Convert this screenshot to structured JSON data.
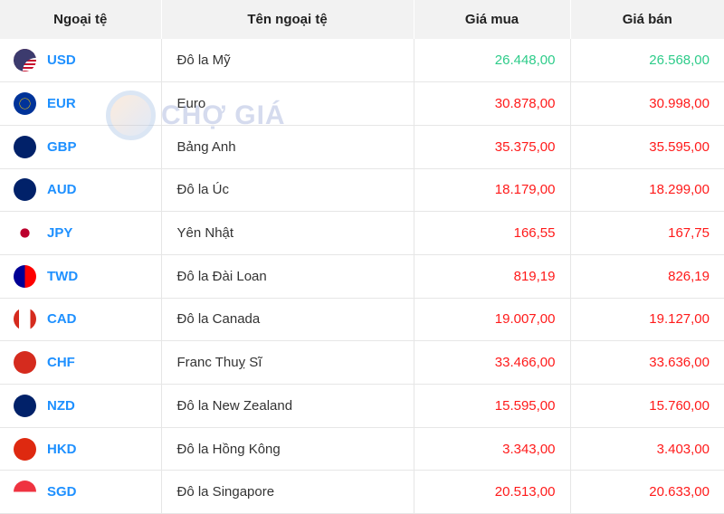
{
  "header": {
    "code": "Ngoại tệ",
    "name": "Tên ngoại tệ",
    "buy": "Giá mua",
    "sell": "Giá bán"
  },
  "watermark": "CHỢ GIÁ",
  "colors": {
    "code": "#1e90ff",
    "up": "#2ecc8a",
    "down": "#ff1a1a"
  },
  "rows": [
    {
      "code": "USD",
      "name": "Đô la Mỹ",
      "buy": "26.448,00",
      "sell": "26.568,00",
      "trend": "up",
      "flag": "us-flag-icon"
    },
    {
      "code": "EUR",
      "name": "Euro",
      "buy": "30.878,00",
      "sell": "30.998,00",
      "trend": "down",
      "flag": "eu-flag-icon"
    },
    {
      "code": "GBP",
      "name": "Bảng Anh",
      "buy": "35.375,00",
      "sell": "35.595,00",
      "trend": "down",
      "flag": "uk-flag-icon"
    },
    {
      "code": "AUD",
      "name": "Đô la Úc",
      "buy": "18.179,00",
      "sell": "18.299,00",
      "trend": "down",
      "flag": "au-flag-icon"
    },
    {
      "code": "JPY",
      "name": "Yên Nhật",
      "buy": "166,55",
      "sell": "167,75",
      "trend": "down",
      "flag": "jp-flag-icon"
    },
    {
      "code": "TWD",
      "name": "Đô la Đài Loan",
      "buy": "819,19",
      "sell": "826,19",
      "trend": "down",
      "flag": "tw-flag-icon"
    },
    {
      "code": "CAD",
      "name": "Đô la Canada",
      "buy": "19.007,00",
      "sell": "19.127,00",
      "trend": "down",
      "flag": "ca-flag-icon"
    },
    {
      "code": "CHF",
      "name": "Franc Thuỵ Sĩ",
      "buy": "33.466,00",
      "sell": "33.636,00",
      "trend": "down",
      "flag": "ch-flag-icon"
    },
    {
      "code": "NZD",
      "name": "Đô la New Zealand",
      "buy": "15.595,00",
      "sell": "15.760,00",
      "trend": "down",
      "flag": "nz-flag-icon"
    },
    {
      "code": "HKD",
      "name": "Đô la Hồng Kông",
      "buy": "3.343,00",
      "sell": "3.403,00",
      "trend": "down",
      "flag": "hk-flag-icon"
    },
    {
      "code": "SGD",
      "name": "Đô la Singapore",
      "buy": "20.513,00",
      "sell": "20.633,00",
      "trend": "down",
      "flag": "sg-flag-icon"
    }
  ]
}
